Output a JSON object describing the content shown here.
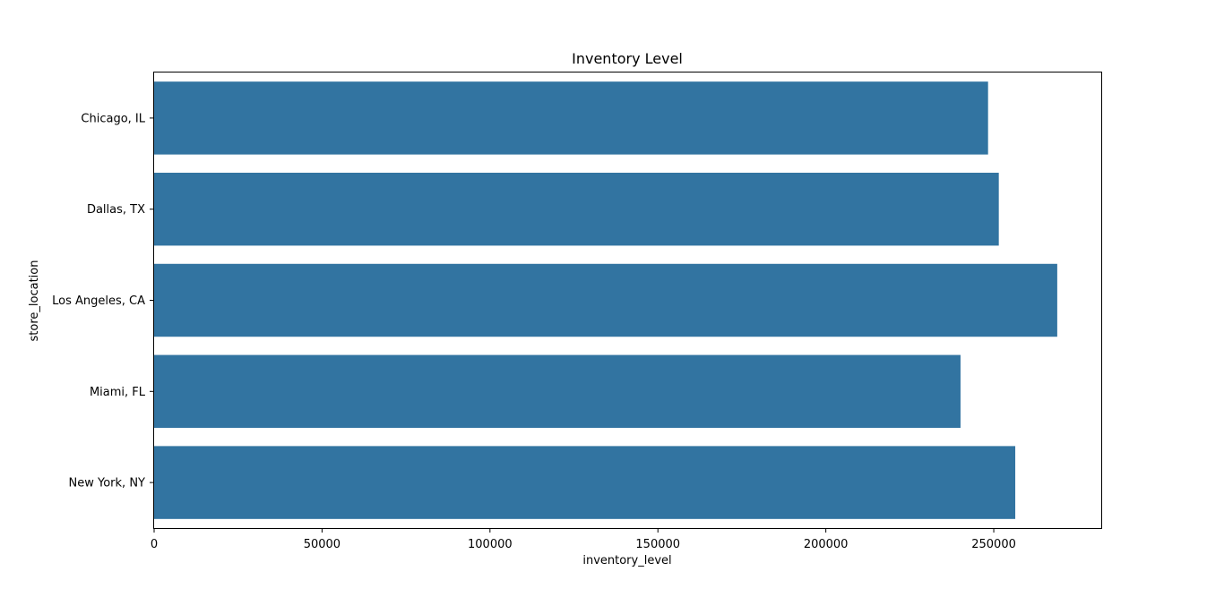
{
  "chart_data": {
    "type": "bar",
    "orientation": "horizontal",
    "title": "Inventory Level",
    "xlabel": "inventory_level",
    "ylabel": "store_location",
    "categories": [
      "Chicago, IL",
      "Dallas, TX",
      "Los Angeles, CA",
      "Miami, FL",
      "New York, NY"
    ],
    "values": [
      248300,
      251500,
      268900,
      240100,
      256400
    ],
    "xlim": [
      0,
      282000
    ],
    "xticks": [
      0,
      50000,
      100000,
      150000,
      200000,
      250000
    ],
    "xtick_labels": [
      "0",
      "50000",
      "100000",
      "150000",
      "200000",
      "250000"
    ],
    "grid": false,
    "bar_color": "#3274a1"
  }
}
